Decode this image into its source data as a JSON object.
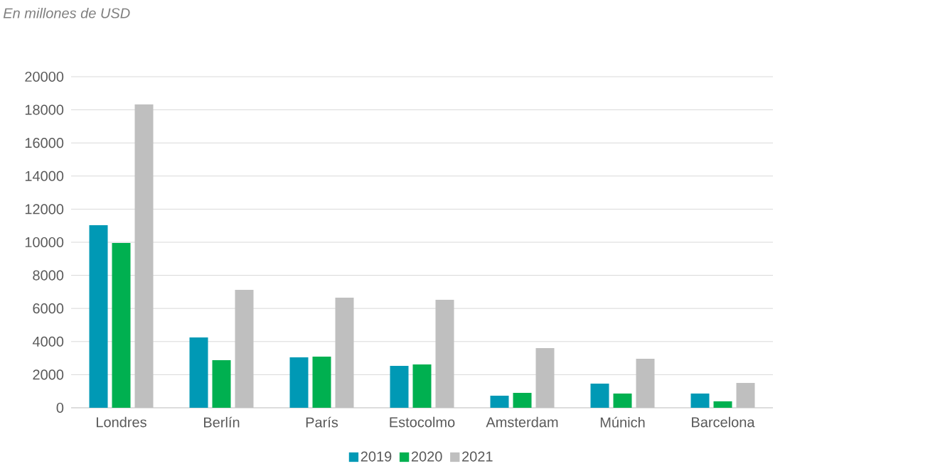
{
  "chart_data": {
    "type": "bar",
    "subtitle": "En millones de USD",
    "categories": [
      "Londres",
      "Berlín",
      "París",
      "Estocolmo",
      "Amsterdam",
      "Múnich",
      "Barcelona"
    ],
    "series": [
      {
        "name": "2019",
        "color": "#0099b5",
        "values": [
          11030,
          4250,
          3050,
          2530,
          730,
          1460,
          860
        ]
      },
      {
        "name": "2020",
        "color": "#00b050",
        "values": [
          9960,
          2880,
          3090,
          2620,
          900,
          860,
          390
        ]
      },
      {
        "name": "2021",
        "color": "#bfbfbf",
        "values": [
          18330,
          7120,
          6650,
          6520,
          3600,
          2960,
          1500
        ]
      }
    ],
    "ylim": [
      0,
      20000
    ],
    "yticks": [
      0,
      2000,
      4000,
      6000,
      8000,
      10000,
      12000,
      14000,
      16000,
      18000,
      20000
    ],
    "grid": "y",
    "legend": "bottom"
  }
}
